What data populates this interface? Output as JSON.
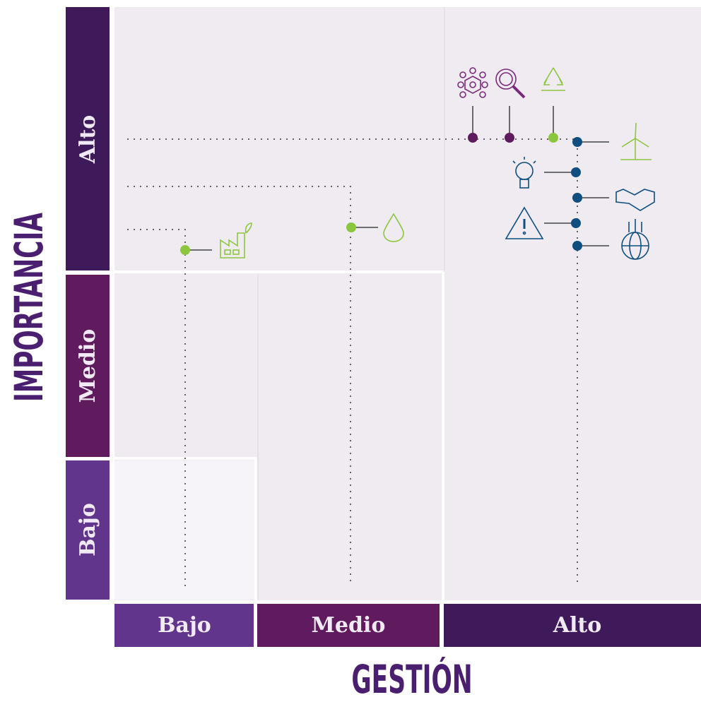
{
  "axes": {
    "y_title": "IMPORTANCIA",
    "x_title": "GESTIÓN",
    "y_levels": [
      "Alto",
      "Medio",
      "Bajo"
    ],
    "x_levels": [
      "Bajo",
      "Medio",
      "Alto"
    ]
  }
}
